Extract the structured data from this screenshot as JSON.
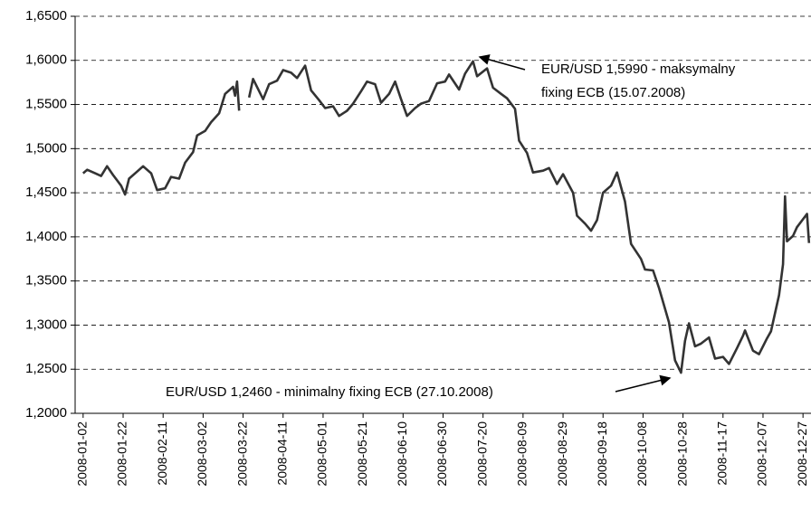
{
  "chart_data": {
    "type": "line",
    "x": [
      "2008-01-02",
      "2008-01-04",
      "2008-01-08",
      "2008-01-11",
      "2008-01-14",
      "2008-01-17",
      "2008-01-21",
      "2008-01-23",
      "2008-01-25",
      "2008-01-29",
      "2008-02-01",
      "2008-02-05",
      "2008-02-08",
      "2008-02-12",
      "2008-02-15",
      "2008-02-19",
      "2008-02-22",
      "2008-02-26",
      "2008-02-28",
      "2008-03-03",
      "2008-03-06",
      "2008-03-10",
      "2008-03-13",
      "2008-03-17",
      "2008-03-18",
      "2008-03-19",
      "2008-03-20",
      "2008-03-21",
      "2008-03-25",
      "2008-03-27",
      "2008-04-01",
      "2008-04-04",
      "2008-04-08",
      "2008-04-11",
      "2008-04-15",
      "2008-04-18",
      "2008-04-22",
      "2008-04-25",
      "2008-04-29",
      "2008-05-02",
      "2008-05-06",
      "2008-05-09",
      "2008-05-13",
      "2008-05-16",
      "2008-05-20",
      "2008-05-23",
      "2008-05-27",
      "2008-05-30",
      "2008-06-03",
      "2008-06-06",
      "2008-06-09",
      "2008-06-12",
      "2008-06-16",
      "2008-06-19",
      "2008-06-23",
      "2008-06-27",
      "2008-07-01",
      "2008-07-03",
      "2008-07-08",
      "2008-07-11",
      "2008-07-15",
      "2008-07-17",
      "2008-07-22",
      "2008-07-25",
      "2008-07-29",
      "2008-08-01",
      "2008-08-05",
      "2008-08-07",
      "2008-08-11",
      "2008-08-14",
      "2008-08-19",
      "2008-08-22",
      "2008-08-26",
      "2008-08-29",
      "2008-09-03",
      "2008-09-05",
      "2008-09-09",
      "2008-09-12",
      "2008-09-15",
      "2008-09-18",
      "2008-09-22",
      "2008-09-25",
      "2008-09-29",
      "2008-10-02",
      "2008-10-07",
      "2008-10-09",
      "2008-10-13",
      "2008-10-16",
      "2008-10-21",
      "2008-10-24",
      "2008-10-27",
      "2008-10-29",
      "2008-10-31",
      "2008-11-03",
      "2008-11-06",
      "2008-11-10",
      "2008-11-13",
      "2008-11-17",
      "2008-11-20",
      "2008-11-24",
      "2008-11-27",
      "2008-11-28",
      "2008-12-02",
      "2008-12-05",
      "2008-12-09",
      "2008-12-11",
      "2008-12-15",
      "2008-12-17",
      "2008-12-18",
      "2008-12-19",
      "2008-12-22",
      "2008-12-24",
      "2008-12-29",
      "2008-12-30"
    ],
    "series": [
      {
        "color": "#333333",
        "values": [
          1.472,
          1.476,
          1.472,
          1.469,
          1.48,
          1.47,
          1.458,
          1.448,
          1.466,
          1.474,
          1.48,
          1.472,
          1.453,
          1.455,
          1.468,
          1.466,
          1.484,
          1.496,
          1.515,
          1.52,
          1.53,
          1.54,
          1.562,
          1.57,
          1.56,
          1.576,
          1.543,
          null,
          1.558,
          1.579,
          1.556,
          1.573,
          1.577,
          1.589,
          1.586,
          1.58,
          1.594,
          1.566,
          1.555,
          1.546,
          1.548,
          1.537,
          1.543,
          1.551,
          1.565,
          1.576,
          1.573,
          1.552,
          1.562,
          1.576,
          1.556,
          1.537,
          1.546,
          1.551,
          1.554,
          1.574,
          1.576,
          1.584,
          1.567,
          1.585,
          1.599,
          1.582,
          1.591,
          1.569,
          1.562,
          1.557,
          1.545,
          1.509,
          1.495,
          1.473,
          1.475,
          1.478,
          1.46,
          1.471,
          1.45,
          1.424,
          1.415,
          1.407,
          1.419,
          1.45,
          1.458,
          1.473,
          1.44,
          1.392,
          1.375,
          1.363,
          1.362,
          1.342,
          1.303,
          1.26,
          1.246,
          1.282,
          1.302,
          1.276,
          1.279,
          1.286,
          1.262,
          1.264,
          1.256,
          1.274,
          1.288,
          1.294,
          1.271,
          1.267,
          1.285,
          1.293,
          1.334,
          1.369,
          1.446,
          1.395,
          1.401,
          1.411,
          1.426,
          1.393
        ]
      }
    ],
    "xlim": [
      "2007-12-29",
      "2008-12-31"
    ],
    "xticks": [
      "2008-01-02",
      "2008-01-22",
      "2008-02-11",
      "2008-03-02",
      "2008-03-22",
      "2008-04-11",
      "2008-05-01",
      "2008-05-21",
      "2008-06-10",
      "2008-06-30",
      "2008-07-20",
      "2008-08-09",
      "2008-08-29",
      "2008-09-18",
      "2008-10-08",
      "2008-10-28",
      "2008-11-17",
      "2008-12-07",
      "2008-12-27"
    ],
    "ylim": [
      1.2,
      1.65
    ],
    "yticks": [
      {
        "value": 1.2,
        "label": "1,2000"
      },
      {
        "value": 1.25,
        "label": "1,2500"
      },
      {
        "value": 1.3,
        "label": "1,3000"
      },
      {
        "value": 1.35,
        "label": "1,3500"
      },
      {
        "value": 1.4,
        "label": "1,4000"
      },
      {
        "value": 1.45,
        "label": "1,4500"
      },
      {
        "value": 1.5,
        "label": "1,5000"
      },
      {
        "value": 1.55,
        "label": "1,5500"
      },
      {
        "value": 1.6,
        "label": "1,6000"
      },
      {
        "value": 1.65,
        "label": "1,6500"
      }
    ],
    "grid": true,
    "annotations": [
      "EUR/USD 1,5990 - maksymalny",
      "fixing ECB (15.07.2008)",
      "EUR/USD 1,2460 - minimalny fixing ECB (27.10.2008)"
    ]
  }
}
